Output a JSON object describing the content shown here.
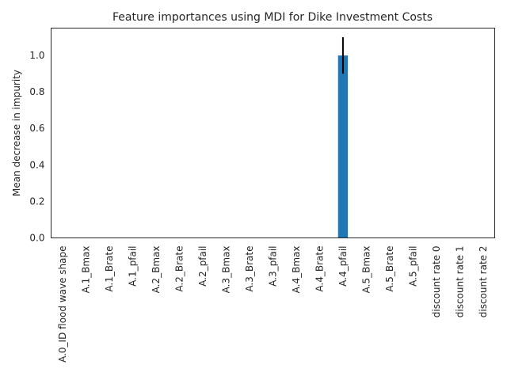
{
  "chart_data": {
    "type": "bar",
    "title": "Feature importances using MDI for Dike Investment Costs",
    "xlabel": "",
    "ylabel": "Mean decrease in impurity",
    "ylim": [
      0,
      1.15
    ],
    "grid": false,
    "legend": "none",
    "categories": [
      "A.0_ID flood wave shape",
      "A.1_Bmax",
      "A.1_Brate",
      "A.1_pfail",
      "A.2_Bmax",
      "A.2_Brate",
      "A.2_pfail",
      "A.3_Bmax",
      "A.3_Brate",
      "A.3_pfail",
      "A.4_Bmax",
      "A.4_Brate",
      "A.4_pfail",
      "A.5_Bmax",
      "A.5_Brate",
      "A.5_pfail",
      "discount rate 0",
      "discount rate 1",
      "discount rate 2"
    ],
    "values": [
      0,
      0,
      0,
      0,
      0,
      0,
      0,
      0,
      0,
      0,
      0,
      0,
      1.0,
      0,
      0,
      0,
      0,
      0,
      0
    ],
    "error_bars": [
      0,
      0,
      0,
      0,
      0,
      0,
      0,
      0,
      0,
      0,
      0,
      0,
      0.1,
      0,
      0,
      0,
      0,
      0,
      0
    ],
    "yticks": [
      "0.0",
      "0.2",
      "0.4",
      "0.6",
      "0.8",
      "1.0"
    ],
    "colors": {
      "bar": "#1f77b4",
      "error_bar": "#000000",
      "text": "#262626"
    }
  }
}
